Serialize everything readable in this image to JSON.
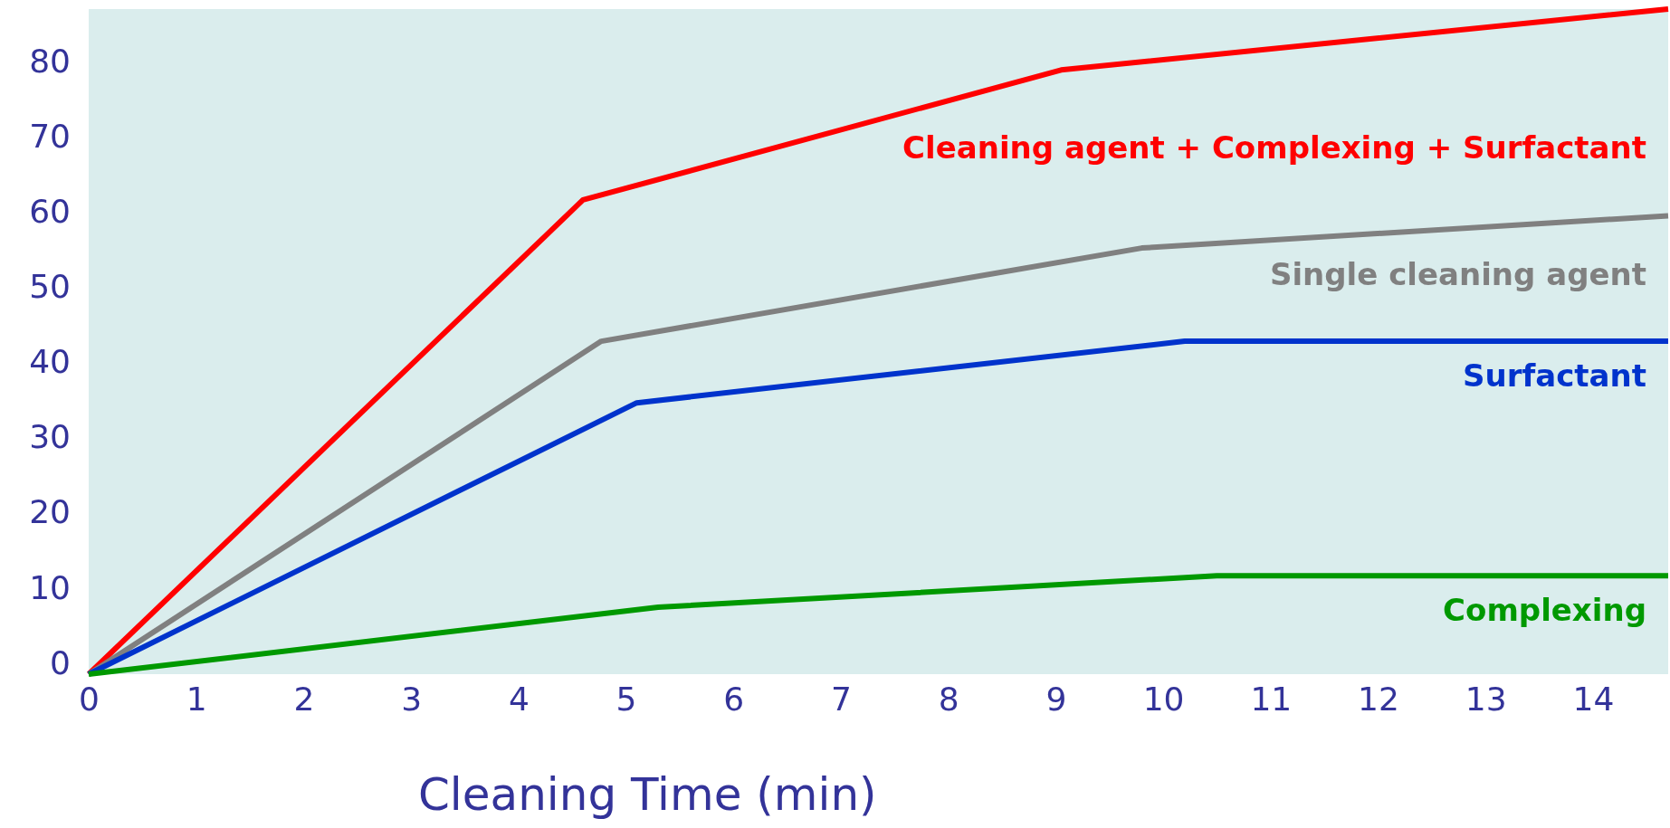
{
  "chart_data": {
    "type": "line",
    "xlabel": "Cleaning Time (min)",
    "xlim": [
      0,
      14.7
    ],
    "xticks": [
      0,
      1,
      2,
      3,
      4,
      5,
      6,
      7,
      8,
      9,
      10,
      11,
      12,
      13,
      14
    ],
    "ylim": [
      -1.5,
      87
    ],
    "yticks": [
      0,
      10,
      20,
      30,
      40,
      50,
      60,
      70,
      80
    ],
    "grid": false,
    "marker": "none",
    "line_style": "solid",
    "series": [
      {
        "name": "Cleaning agent + Complexing + Surfactant",
        "color": "#ff0000",
        "x": [
          0,
          4.6,
          9.05,
          14.7
        ],
        "values": [
          -1.5,
          61.6,
          78.9,
          87
        ]
      },
      {
        "name": "Single cleaning agent",
        "color": "#808080",
        "x": [
          0,
          4.77,
          9.8,
          14.7
        ],
        "values": [
          -1.5,
          42.8,
          55.2,
          59.5
        ]
      },
      {
        "name": "Surfactant",
        "color": "#0033cc",
        "x": [
          0,
          5.1,
          10.2,
          14.7
        ],
        "values": [
          -1.5,
          34.6,
          42.8,
          42.8
        ]
      },
      {
        "name": "Complexing",
        "color": "#009900",
        "x": [
          0,
          5.3,
          10.5,
          14.7
        ],
        "values": [
          -1.5,
          7.4,
          11.6,
          11.6
        ]
      }
    ]
  }
}
